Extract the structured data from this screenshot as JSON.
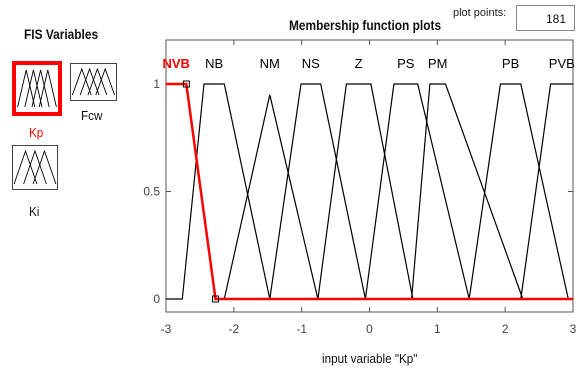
{
  "fis_panel": {
    "title": "FIS Variables",
    "variables": [
      {
        "name": "Kp",
        "selected": true
      },
      {
        "name": "Fcw",
        "selected": false
      },
      {
        "name": "Ki",
        "selected": false
      }
    ]
  },
  "plot": {
    "title": "Membership function plots",
    "plot_points_label": "plot points:",
    "plot_points_value": "181",
    "xlabel": "input variable \"Kp\""
  },
  "chart_data": {
    "type": "line",
    "title": "Membership function plots",
    "xlabel": "input variable \"Kp\"",
    "ylabel": "",
    "xlim": [
      -3,
      3
    ],
    "ylim": [
      0,
      1
    ],
    "x_ticks": [
      "-3",
      "-2",
      "-1",
      "0",
      "1",
      "2",
      "3"
    ],
    "y_ticks": [
      "0",
      "0.5",
      "1"
    ],
    "selected_series": "NVB",
    "series": [
      {
        "name": "NVB",
        "points": [
          [
            -3.0,
            1
          ],
          [
            -2.7,
            1
          ],
          [
            -2.27,
            0
          ],
          [
            3.0,
            0
          ]
        ]
      },
      {
        "name": "NB",
        "points": [
          [
            -3.0,
            0
          ],
          [
            -2.76,
            0
          ],
          [
            -2.44,
            1
          ],
          [
            -2.14,
            1
          ],
          [
            -1.47,
            0
          ]
        ]
      },
      {
        "name": "NM",
        "points": [
          [
            -2.14,
            0
          ],
          [
            -1.47,
            0.95
          ],
          [
            -0.76,
            0
          ]
        ]
      },
      {
        "name": "NS",
        "points": [
          [
            -1.47,
            0
          ],
          [
            -1.01,
            1
          ],
          [
            -0.72,
            1
          ],
          [
            -0.06,
            0
          ]
        ]
      },
      {
        "name": "Z",
        "points": [
          [
            -0.76,
            0
          ],
          [
            -0.34,
            1
          ],
          [
            0.02,
            1
          ],
          [
            0.64,
            0
          ]
        ]
      },
      {
        "name": "PS",
        "points": [
          [
            -0.06,
            0
          ],
          [
            0.36,
            1
          ],
          [
            0.71,
            1
          ],
          [
            1.47,
            0
          ]
        ]
      },
      {
        "name": "PM",
        "points": [
          [
            0.62,
            0
          ],
          [
            0.89,
            1
          ],
          [
            1.12,
            1
          ],
          [
            2.26,
            0
          ]
        ]
      },
      {
        "name": "PB",
        "points": [
          [
            1.47,
            0
          ],
          [
            1.93,
            1
          ],
          [
            2.23,
            1
          ],
          [
            2.93,
            0
          ]
        ]
      },
      {
        "name": "PVB",
        "points": [
          [
            2.23,
            0
          ],
          [
            2.67,
            1
          ],
          [
            3.0,
            1
          ]
        ]
      }
    ],
    "colors": {
      "selected": "#ff0000",
      "default": "#000000"
    }
  }
}
